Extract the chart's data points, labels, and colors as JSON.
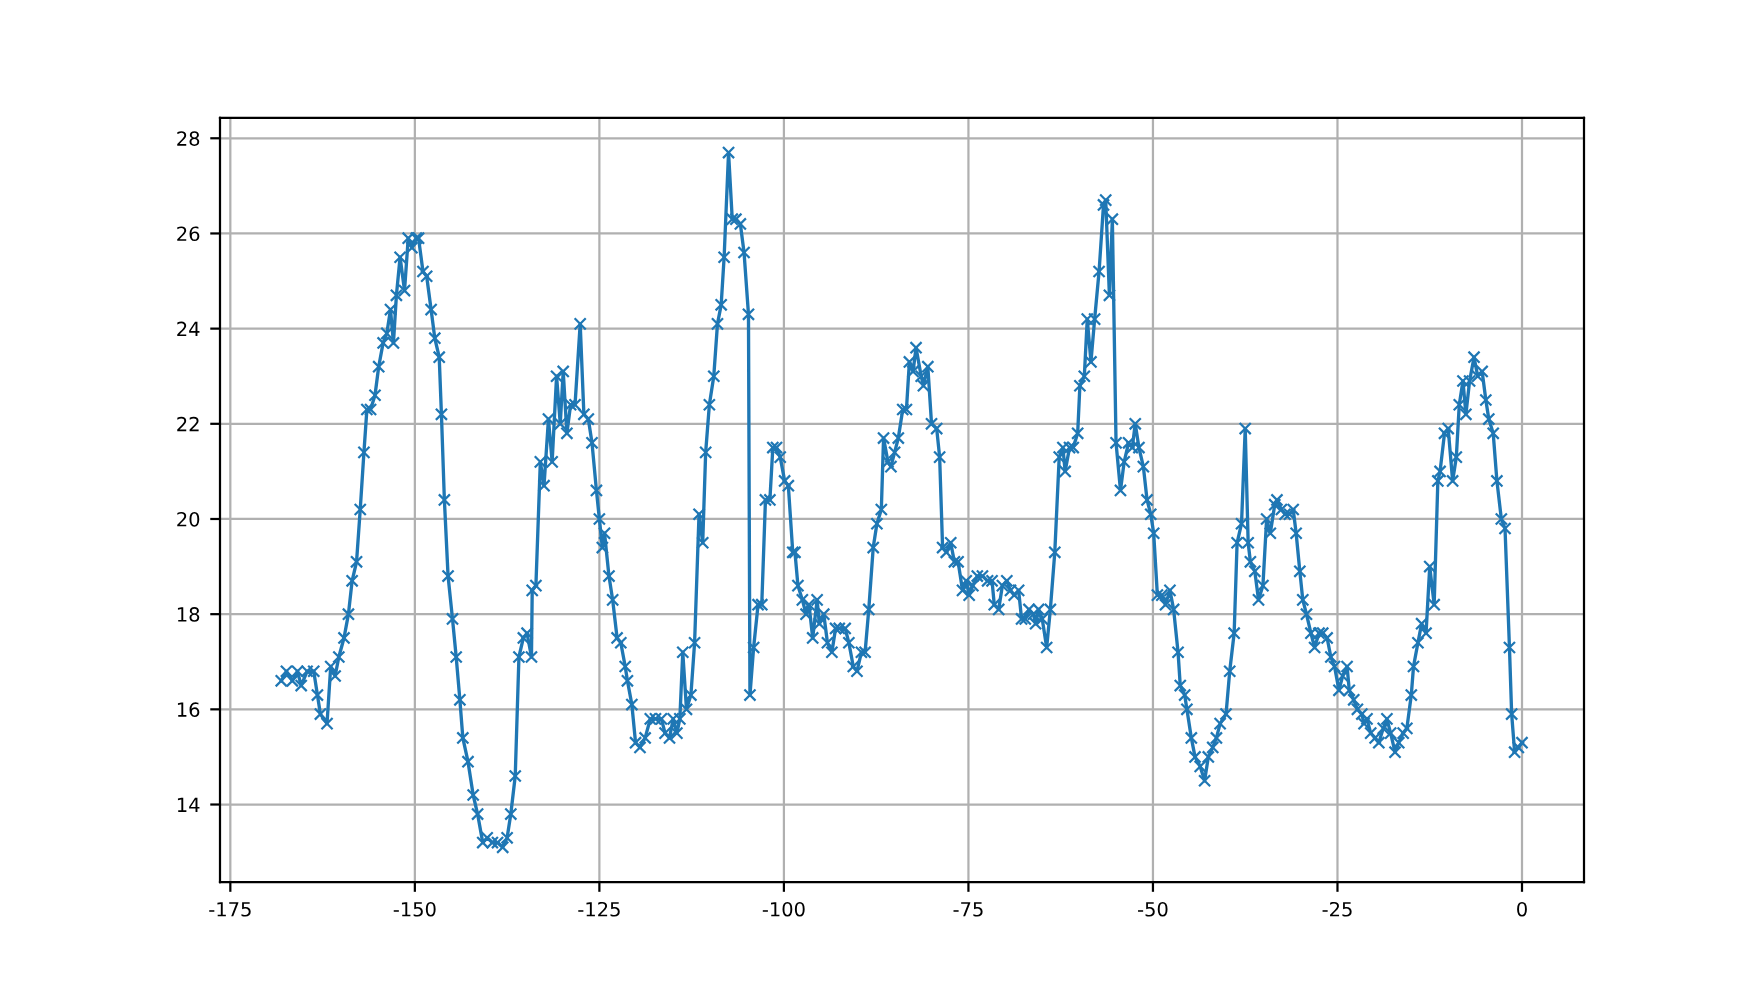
{
  "chart_data": {
    "type": "line",
    "marker": "cross",
    "line_style": "solid",
    "grid": true,
    "xlim": [
      -176.4,
      8.4
    ],
    "ylim": [
      12.37,
      28.43
    ],
    "xticks": [
      -175,
      -150,
      -125,
      -100,
      -75,
      -50,
      -25,
      0
    ],
    "yticks": [
      14,
      16,
      18,
      20,
      22,
      24,
      26,
      28
    ],
    "series": [
      {
        "color": "#1f77b4",
        "x": [
          -168.1,
          -167.4,
          -166.6,
          -165.9,
          -165.4,
          -164.6,
          -163.7,
          -163.2,
          -162.8,
          -161.9,
          -161.4,
          -160.8,
          -160.3,
          -159.6,
          -159.0,
          -158.5,
          -157.9,
          -157.4,
          -156.9,
          -156.5,
          -156.0,
          -155.4,
          -154.9,
          -154.3,
          -153.8,
          -153.3,
          -152.9,
          -152.5,
          -152.0,
          -151.4,
          -150.9,
          -150.4,
          -149.8,
          -149.5,
          -148.9,
          -148.4,
          -147.8,
          -147.3,
          -146.7,
          -146.4,
          -146.0,
          -145.5,
          -144.9,
          -144.4,
          -143.9,
          -143.5,
          -142.8,
          -142.1,
          -141.5,
          -140.8,
          -140.2,
          -139.5,
          -138.8,
          -138.1,
          -137.5,
          -137.0,
          -136.4,
          -135.9,
          -135.3,
          -134.8,
          -134.2,
          -134.1,
          -133.6,
          -133.0,
          -132.5,
          -131.9,
          -131.4,
          -130.8,
          -130.3,
          -129.9,
          -129.4,
          -128.9,
          -128.3,
          -127.6,
          -127.1,
          -126.5,
          -126.0,
          -125.4,
          -125.0,
          -124.6,
          -124.3,
          -123.7,
          -123.2,
          -122.6,
          -122.1,
          -121.5,
          -121.2,
          -120.6,
          -120.1,
          -119.5,
          -118.8,
          -118.1,
          -117.4,
          -116.6,
          -116.1,
          -115.5,
          -115.0,
          -114.5,
          -114.1,
          -113.7,
          -113.2,
          -112.6,
          -112.1,
          -111.5,
          -111.0,
          -110.6,
          -110.1,
          -109.5,
          -109.0,
          -108.5,
          -108.1,
          -107.5,
          -107.0,
          -106.5,
          -105.9,
          -105.4,
          -104.8,
          -104.6,
          -104.1,
          -103.5,
          -103.0,
          -102.5,
          -101.9,
          -101.5,
          -101.0,
          -100.5,
          -99.9,
          -99.4,
          -98.8,
          -98.5,
          -98.1,
          -97.5,
          -97.0,
          -96.6,
          -96.1,
          -95.5,
          -95.2,
          -94.6,
          -94.1,
          -93.5,
          -93.0,
          -92.5,
          -91.7,
          -91.2,
          -90.6,
          -90.1,
          -89.5,
          -89.0,
          -88.5,
          -87.9,
          -87.4,
          -86.8,
          -86.5,
          -85.9,
          -85.5,
          -85.0,
          -84.5,
          -83.9,
          -83.4,
          -83.0,
          -82.5,
          -82.1,
          -81.4,
          -81.1,
          -80.5,
          -80.0,
          -79.3,
          -78.9,
          -78.5,
          -78.0,
          -77.4,
          -76.9,
          -76.4,
          -75.8,
          -75.3,
          -74.9,
          -74.4,
          -73.8,
          -73.1,
          -72.4,
          -71.8,
          -71.5,
          -70.9,
          -70.4,
          -69.8,
          -69.3,
          -68.8,
          -68.2,
          -67.8,
          -67.3,
          -66.8,
          -66.2,
          -65.9,
          -65.5,
          -65.0,
          -64.4,
          -63.9,
          -63.3,
          -62.7,
          -62.2,
          -61.9,
          -61.3,
          -60.8,
          -60.2,
          -59.9,
          -59.3,
          -58.9,
          -58.4,
          -57.9,
          -57.3,
          -56.7,
          -56.4,
          -55.9,
          -55.5,
          -55.0,
          -54.4,
          -53.9,
          -53.3,
          -52.8,
          -52.4,
          -51.9,
          -51.3,
          -50.8,
          -50.3,
          -49.9,
          -49.4,
          -48.8,
          -48.3,
          -47.7,
          -47.2,
          -46.6,
          -46.3,
          -45.7,
          -45.4,
          -44.8,
          -44.3,
          -43.6,
          -43.0,
          -42.5,
          -41.9,
          -41.4,
          -40.9,
          -40.1,
          -39.6,
          -39.0,
          -38.6,
          -38.0,
          -37.5,
          -37.1,
          -36.8,
          -36.2,
          -35.7,
          -35.1,
          -34.6,
          -34.1,
          -33.5,
          -33.2,
          -32.6,
          -32.1,
          -31.5,
          -31.0,
          -30.6,
          -30.1,
          -29.7,
          -29.2,
          -28.6,
          -28.1,
          -27.5,
          -27.0,
          -26.4,
          -25.9,
          -25.4,
          -24.8,
          -24.3,
          -23.7,
          -23.4,
          -22.8,
          -22.3,
          -21.7,
          -21.4,
          -21.0,
          -20.5,
          -19.9,
          -19.4,
          -18.8,
          -18.3,
          -17.8,
          -17.2,
          -16.7,
          -16.1,
          -15.6,
          -15.0,
          -14.7,
          -14.1,
          -13.6,
          -13.0,
          -12.5,
          -11.9,
          -11.4,
          -11.1,
          -10.5,
          -10.0,
          -9.4,
          -8.9,
          -8.5,
          -8.0,
          -7.6,
          -7.1,
          -6.5,
          -6.0,
          -5.4,
          -4.9,
          -4.5,
          -3.9,
          -3.4,
          -2.8,
          -2.3,
          -1.7,
          -1.4,
          -1.0,
          -0.5,
          0.0
        ],
        "values": [
          16.6,
          16.8,
          16.6,
          16.8,
          16.5,
          16.8,
          16.8,
          16.3,
          15.9,
          15.7,
          16.9,
          16.7,
          17.1,
          17.5,
          18.0,
          18.7,
          19.1,
          20.2,
          21.4,
          22.3,
          22.3,
          22.6,
          23.2,
          23.7,
          23.9,
          24.4,
          23.7,
          24.7,
          25.5,
          24.8,
          25.9,
          25.7,
          25.9,
          25.9,
          25.2,
          25.1,
          24.4,
          23.8,
          23.4,
          22.2,
          20.4,
          18.8,
          17.9,
          17.1,
          16.2,
          15.4,
          14.9,
          14.2,
          13.8,
          13.2,
          13.3,
          13.2,
          13.2,
          13.1,
          13.3,
          13.8,
          14.6,
          17.1,
          17.5,
          17.6,
          17.1,
          18.5,
          18.6,
          21.2,
          20.7,
          22.1,
          21.2,
          23.0,
          22.0,
          23.1,
          21.8,
          22.4,
          22.4,
          24.1,
          22.2,
          22.1,
          21.6,
          20.6,
          20.0,
          19.4,
          19.7,
          18.8,
          18.3,
          17.5,
          17.4,
          16.9,
          16.6,
          16.1,
          15.3,
          15.2,
          15.4,
          15.8,
          15.8,
          15.8,
          15.5,
          15.4,
          15.8,
          15.5,
          15.8,
          17.2,
          16.0,
          16.3,
          17.4,
          20.1,
          19.5,
          21.4,
          22.4,
          23.0,
          24.1,
          24.5,
          25.5,
          27.7,
          26.3,
          26.3,
          26.2,
          25.6,
          24.3,
          16.3,
          17.3,
          18.2,
          18.2,
          20.4,
          20.4,
          21.5,
          21.5,
          21.3,
          20.8,
          20.7,
          19.3,
          19.3,
          18.6,
          18.3,
          18.0,
          18.2,
          17.5,
          18.3,
          17.8,
          18.0,
          17.4,
          17.2,
          17.7,
          17.7,
          17.7,
          17.4,
          16.9,
          16.8,
          17.2,
          17.2,
          18.1,
          19.4,
          19.9,
          20.2,
          21.7,
          21.2,
          21.1,
          21.4,
          21.7,
          22.3,
          22.3,
          23.3,
          23.1,
          23.6,
          23.0,
          22.8,
          23.2,
          22.0,
          21.9,
          21.3,
          19.4,
          19.3,
          19.5,
          19.1,
          19.1,
          18.5,
          18.7,
          18.4,
          18.6,
          18.8,
          18.8,
          18.7,
          18.7,
          18.2,
          18.1,
          18.6,
          18.7,
          18.5,
          18.4,
          18.5,
          17.9,
          17.9,
          18.1,
          18.0,
          17.8,
          18.1,
          17.9,
          17.3,
          18.1,
          19.3,
          21.3,
          21.5,
          21.0,
          21.5,
          21.5,
          21.8,
          22.8,
          23.0,
          24.2,
          23.3,
          24.2,
          25.2,
          26.6,
          26.7,
          24.7,
          26.3,
          21.6,
          20.6,
          21.2,
          21.6,
          21.5,
          22.0,
          21.5,
          21.1,
          20.4,
          20.1,
          19.7,
          18.4,
          18.4,
          18.2,
          18.5,
          18.1,
          17.2,
          16.5,
          16.3,
          16.0,
          15.4,
          15.0,
          14.8,
          14.5,
          15.0,
          15.2,
          15.4,
          15.7,
          15.9,
          16.8,
          17.6,
          19.5,
          19.9,
          21.9,
          19.5,
          19.1,
          18.9,
          18.3,
          18.6,
          20.0,
          19.7,
          20.3,
          20.4,
          20.2,
          20.1,
          20.1,
          20.2,
          19.7,
          18.9,
          18.3,
          18.0,
          17.6,
          17.3,
          17.6,
          17.6,
          17.5,
          17.1,
          16.9,
          16.4,
          16.7,
          16.9,
          16.4,
          16.2,
          16.0,
          15.9,
          15.7,
          15.8,
          15.5,
          15.4,
          15.3,
          15.6,
          15.8,
          15.5,
          15.1,
          15.3,
          15.5,
          15.6,
          16.3,
          16.9,
          17.4,
          17.8,
          17.6,
          19.0,
          18.2,
          20.8,
          21.0,
          21.8,
          21.9,
          20.8,
          21.3,
          22.4,
          22.9,
          22.2,
          22.9,
          23.4,
          23.0,
          23.1,
          22.5,
          22.1,
          21.8,
          20.8,
          20.0,
          19.8,
          17.3,
          15.9,
          15.1,
          15.2,
          15.3
        ]
      }
    ]
  }
}
